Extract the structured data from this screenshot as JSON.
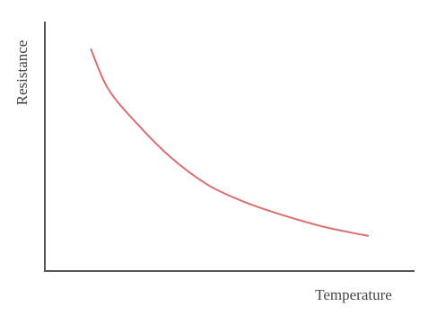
{
  "chart_data": {
    "type": "line",
    "x_label": "Temperature",
    "y_label": "Resistance",
    "x": [
      12.4,
      17,
      24.3,
      34,
      43.7,
      52,
      60.7,
      72.8,
      80,
      87.6
    ],
    "series": [
      {
        "color": "#d9706f",
        "values": [
          89.5,
          73.6,
          60.3,
          45.8,
          35.0,
          29.0,
          24.2,
          18.8,
          16.3,
          14.1
        ]
      }
    ],
    "xlim": [
      0,
      100
    ],
    "ylim": [
      0,
      100
    ]
  }
}
